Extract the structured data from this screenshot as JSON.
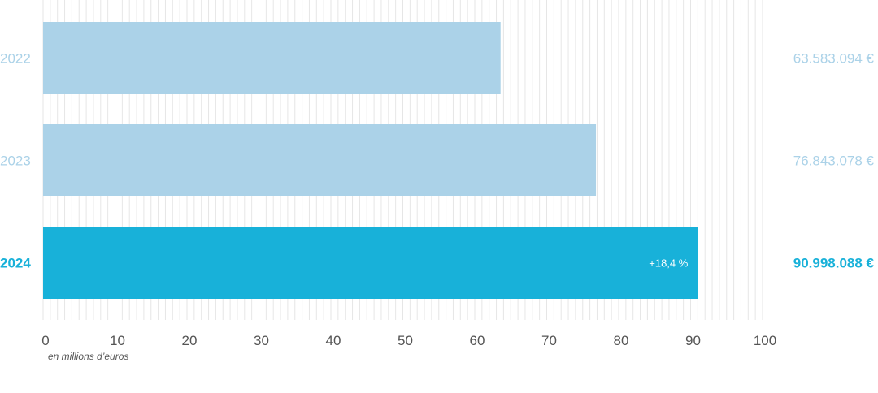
{
  "chart_data": {
    "type": "bar",
    "orientation": "horizontal",
    "categories": [
      "2022",
      "2023",
      "2024"
    ],
    "values": [
      63.583094,
      76.843078,
      90.998088
    ],
    "value_labels": [
      "63.583.094 €",
      "76.843.078 €",
      "90.998.088 €"
    ],
    "xlim": [
      0,
      100
    ],
    "x_ticks": [
      "0",
      "10",
      "20",
      "30",
      "40",
      "50",
      "60",
      "70",
      "80",
      "90",
      "100"
    ],
    "xlabel": "en millions d’euros",
    "annotations": [
      {
        "category": "2024",
        "text": "+18,4 %"
      }
    ],
    "grid": true,
    "colors": {
      "past": "#abd2e8",
      "current": "#18b1d9",
      "past_text": "#abd2e8",
      "current_text": "#18b1d9",
      "grid": "#e6e6e6"
    }
  }
}
